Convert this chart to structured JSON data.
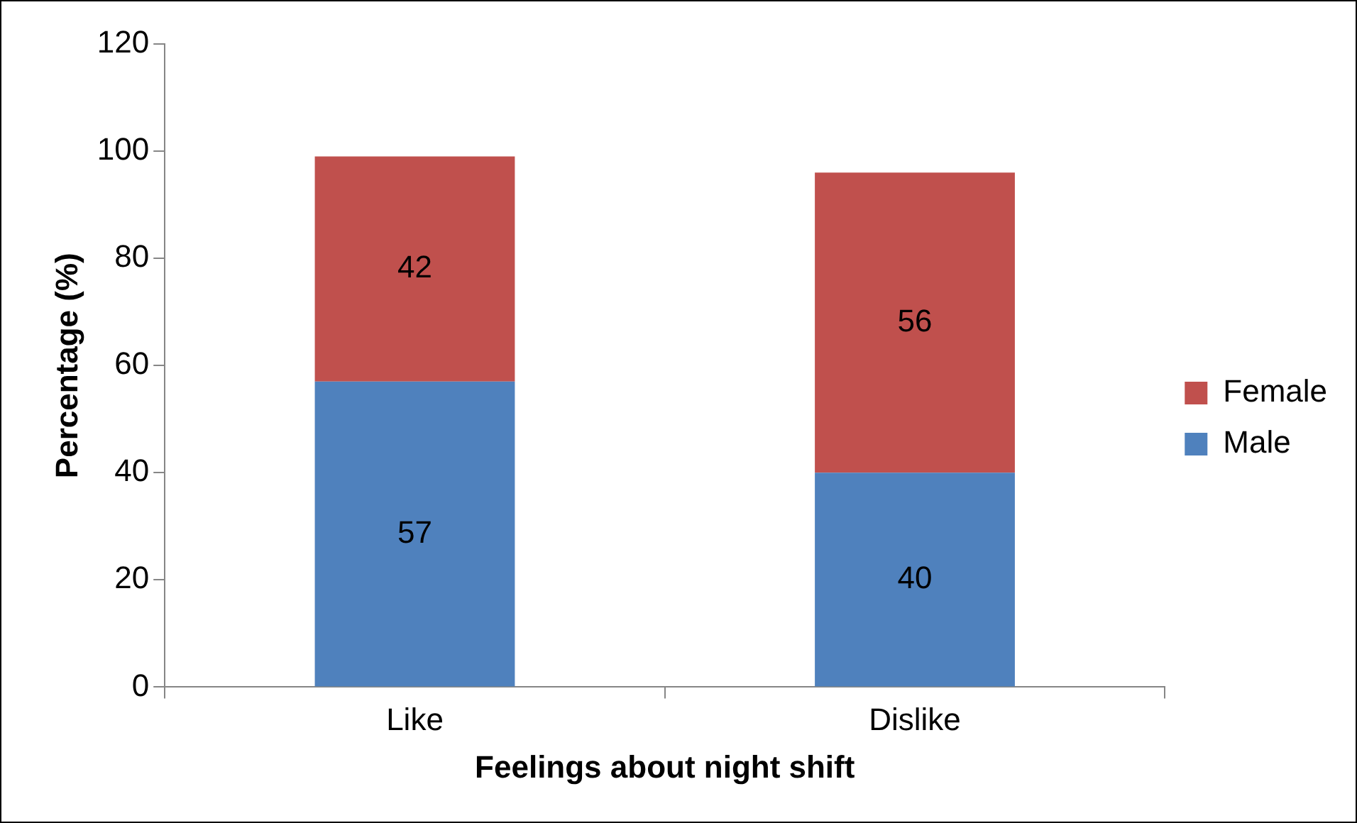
{
  "chart_data": {
    "type": "bar",
    "stacked": true,
    "xlabel": "Feelings about night shift",
    "ylabel": "Percentage (%)",
    "categories": [
      "Like",
      "Dislike"
    ],
    "series": [
      {
        "name": "Male",
        "color": "#4f81bd",
        "values": [
          57,
          40
        ]
      },
      {
        "name": "Female",
        "color": "#c0504d",
        "values": [
          42,
          56
        ]
      }
    ],
    "ylim": [
      0,
      120
    ],
    "yticks": [
      0,
      20,
      40,
      60,
      80,
      100,
      120
    ],
    "grid": false,
    "legend": "right",
    "data_labels": true
  }
}
